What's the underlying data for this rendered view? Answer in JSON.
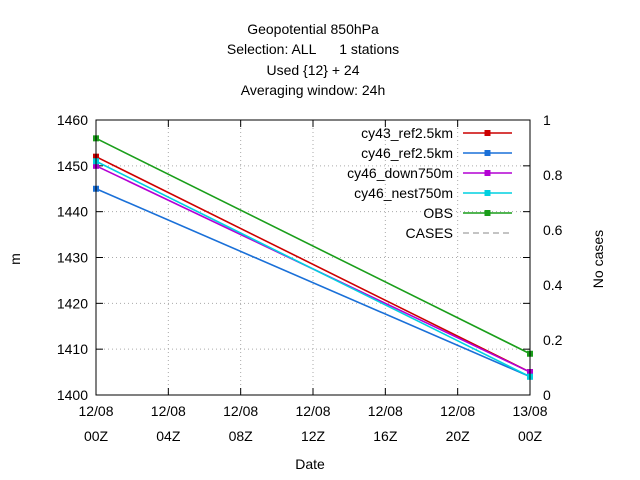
{
  "chart_data": {
    "type": "line",
    "title_lines": [
      "Geopotential 850hPa",
      "Selection: ALL      1 stations",
      "Used {12} + 24",
      "Averaging window: 24h"
    ],
    "xlabel": "Date",
    "ylabel": "m",
    "y2label": "No cases",
    "x_ticks": [
      {
        "value": 0,
        "line1": "12/08",
        "line2": "00Z"
      },
      {
        "value": 4,
        "line1": "12/08",
        "line2": "04Z"
      },
      {
        "value": 8,
        "line1": "12/08",
        "line2": "08Z"
      },
      {
        "value": 12,
        "line1": "12/08",
        "line2": "12Z"
      },
      {
        "value": 16,
        "line1": "12/08",
        "line2": "16Z"
      },
      {
        "value": 20,
        "line1": "12/08",
        "line2": "20Z"
      },
      {
        "value": 24,
        "line1": "13/08",
        "line2": "00Z"
      }
    ],
    "xlim": [
      0,
      24
    ],
    "ylim": [
      1400,
      1460
    ],
    "y_ticks": [
      1400,
      1410,
      1420,
      1430,
      1440,
      1450,
      1460
    ],
    "y2lim": [
      0,
      1
    ],
    "y2_ticks": [
      "0",
      "0.2",
      "0.4",
      "0.6",
      "0.8",
      "1"
    ],
    "grid": true,
    "legend_position": "top-right",
    "series": [
      {
        "name": "cy43_ref2.5km",
        "color": "#cc0000",
        "marker": "square",
        "x": [
          0,
          24
        ],
        "y": [
          1452,
          1405
        ]
      },
      {
        "name": "cy46_ref2.5km",
        "color": "#1a70d8",
        "marker": "square",
        "x": [
          0,
          24
        ],
        "y": [
          1445,
          1404
        ]
      },
      {
        "name": "cy46_down750m",
        "color": "#b400d4",
        "marker": "square",
        "x": [
          0,
          24
        ],
        "y": [
          1450,
          1405
        ]
      },
      {
        "name": "cy46_nest750m",
        "color": "#00d0e0",
        "marker": "square",
        "x": [
          0,
          24
        ],
        "y": [
          1451,
          1404
        ]
      },
      {
        "name": "OBS",
        "color": "#1a9e1a",
        "marker": "square",
        "x": [
          0,
          24
        ],
        "y": [
          1456,
          1409
        ]
      },
      {
        "name": "CASES",
        "color": "#b0b0b0",
        "marker": "none",
        "dashed": true,
        "x": [],
        "y": []
      }
    ]
  }
}
